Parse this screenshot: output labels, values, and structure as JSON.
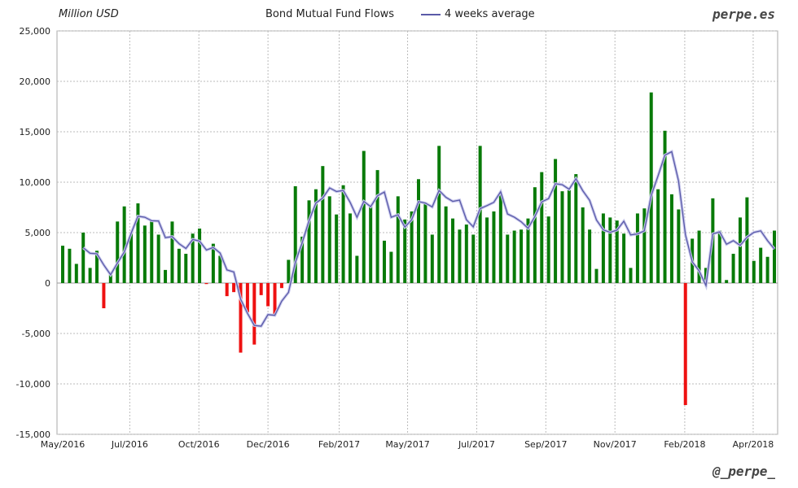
{
  "chart_data": {
    "type": "bar",
    "title": "Bond Mutual Fund Flows",
    "ylabel": "Million USD",
    "legend": [
      {
        "name": "4 weeks average",
        "color": "#5a5aa8"
      }
    ],
    "legend_position": "top-center",
    "ylim": [
      -15000,
      25000
    ],
    "yticks": [
      25000,
      20000,
      15000,
      10000,
      5000,
      0,
      -5000,
      -10000,
      -15000
    ],
    "ytick_labels": [
      "25,000",
      "20,000",
      "15,000",
      "10,000",
      "5,000",
      "0",
      "-5,000",
      "-10,000",
      "-15,000"
    ],
    "xticks": [
      {
        "label": "May/2016",
        "index": 0
      },
      {
        "label": "Jul/2016",
        "index": 9.8
      },
      {
        "label": "Oct/2016",
        "index": 19.9
      },
      {
        "label": "Dec/2016",
        "index": 30
      },
      {
        "label": "Feb/2017",
        "index": 40.4
      },
      {
        "label": "May/2017",
        "index": 50.4
      },
      {
        "label": "Jul/2017",
        "index": 60.5
      },
      {
        "label": "Sep/2017",
        "index": 70.6
      },
      {
        "label": "Nov/2017",
        "index": 80.7
      },
      {
        "label": "Feb/2018",
        "index": 90.9
      },
      {
        "label": "Apr/2018",
        "index": 100.9
      }
    ],
    "grid": true,
    "colors": {
      "positive": "#087a08",
      "negative": "#ee1111",
      "average": "#5a5aa8"
    },
    "values": [
      3700,
      3400,
      1900,
      5000,
      1500,
      3200,
      -2500,
      1100,
      6100,
      7600,
      4900,
      7900,
      5700,
      6200,
      4800,
      1300,
      6100,
      3400,
      2900,
      4900,
      5400,
      -100,
      3900,
      2700,
      -1300,
      -900,
      -6900,
      -2900,
      -6100,
      -1200,
      -2300,
      -3200,
      -500,
      2300,
      9600,
      4600,
      8200,
      9300,
      11600,
      8600,
      6800,
      9700,
      6900,
      2700,
      13100,
      7600,
      11200,
      4200,
      3100,
      8600,
      6300,
      7100,
      10300,
      8000,
      4800,
      13600,
      7600,
      6400,
      5300,
      5800,
      4800,
      13600,
      6500,
      7100,
      9000,
      4800,
      5200,
      5300,
      6400,
      9500,
      11000,
      6600,
      12300,
      9100,
      9200,
      10800,
      7500,
      5300,
      1400,
      6900,
      6500,
      6200,
      4900,
      1500,
      6900,
      7400,
      18900,
      9300,
      15100,
      8800,
      7300,
      -12100,
      4400,
      5200,
      1500,
      8400,
      5200,
      300,
      2900,
      6500,
      8500,
      2200,
      3500,
      2600,
      5200
    ]
  },
  "header": {
    "unit": "Million USD",
    "title": "Bond Mutual Fund Flows",
    "legend_label": "4 weeks average",
    "brand": "perpe.es"
  },
  "footer": {
    "handle": "@_perpe_"
  }
}
